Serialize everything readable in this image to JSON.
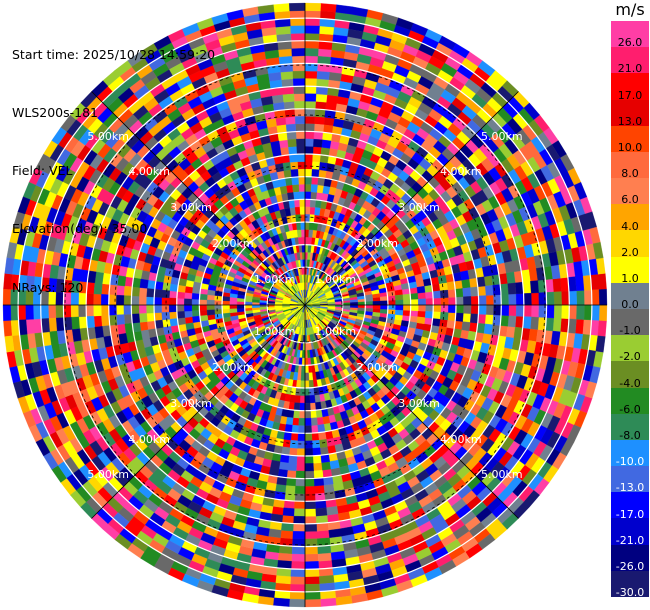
{
  "header": {
    "start_time": "Start time: 2025/10/28 14:59:20",
    "instrument": "WLS200s-181",
    "field": "Field: VEL",
    "elevation": "Elevation(deg): 35.00",
    "nrays": "NRays: 120"
  },
  "colorbar": {
    "unit": "m/s",
    "ticks": [
      "26.0",
      "21.0",
      "17.0",
      "13.0",
      "10.0",
      "8.0",
      "6.0",
      "4.0",
      "2.0",
      "1.0",
      "0.0",
      "-1.0",
      "-2.0",
      "-4.0",
      "-6.0",
      "-8.0",
      "-10.0",
      "-13.0",
      "-17.0",
      "-21.0",
      "-26.0",
      "-30.0"
    ],
    "colors": [
      "#ff3ea5",
      "#ff1e6e",
      "#ff0000",
      "#e60000",
      "#ff4400",
      "#ff6a3d",
      "#ff7f50",
      "#ffa500",
      "#ffd700",
      "#ffff00",
      "#708090",
      "#696969",
      "#9acd32",
      "#6b8e23",
      "#228b22",
      "#2e8b57",
      "#1e90ff",
      "#4169e1",
      "#0000ff",
      "#0000cd",
      "#000080",
      "#191970"
    ]
  },
  "rings": {
    "labels": [
      "1.00km",
      "2.00km",
      "3.00km",
      "4.00km",
      "5.00km"
    ]
  }
}
